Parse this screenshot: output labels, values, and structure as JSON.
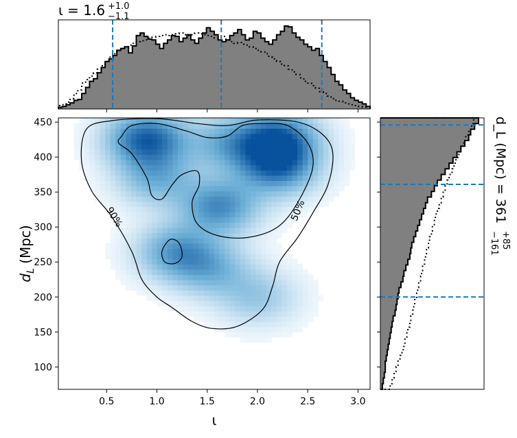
{
  "chart_data": {
    "type": "heatmap",
    "top_title": {
      "base": "ι = 1.6",
      "sup": "+1.0",
      "sub": "−1.1"
    },
    "side_title": {
      "base": "d_L (Mpc) = 361",
      "sup": "+85",
      "sub": "−161"
    },
    "xlabel": "ι",
    "ylabel": {
      "main": "d",
      "sub": "L",
      "rest": " (Mpc)"
    },
    "xlim": [
      0.02,
      3.12
    ],
    "ylim": [
      68,
      456
    ],
    "xticks": [
      "0.5",
      "1.0",
      "1.5",
      "2.0",
      "2.5",
      "3.0"
    ],
    "yticks": [
      "100",
      "150",
      "200",
      "250",
      "300",
      "350",
      "400",
      "450"
    ],
    "x_quantiles": [
      0.56,
      1.64,
      2.64
    ],
    "y_quantiles": [
      200,
      361,
      446
    ],
    "contour_labels": [
      "90%",
      "50%"
    ],
    "density_peaks": [
      {
        "x": 0.9,
        "y": 426,
        "weight": 1.0
      },
      {
        "x": 2.2,
        "y": 425,
        "weight": 1.0
      },
      {
        "x": 2.2,
        "y": 385,
        "weight": 0.8
      },
      {
        "x": 1.62,
        "y": 330,
        "weight": 0.75
      },
      {
        "x": 1.7,
        "y": 420,
        "weight": 0.5
      },
      {
        "x": 1.2,
        "y": 265,
        "weight": 0.65
      },
      {
        "x": 1.55,
        "y": 240,
        "weight": 0.45
      },
      {
        "x": 2.0,
        "y": 200,
        "weight": 0.35
      },
      {
        "x": 1.0,
        "y": 370,
        "weight": 0.5
      }
    ],
    "contour_50": [
      [
        0.65,
        430
      ],
      [
        0.75,
        445
      ],
      [
        1.0,
        448
      ],
      [
        1.3,
        437
      ],
      [
        1.5,
        428
      ],
      [
        1.7,
        430
      ],
      [
        1.85,
        445
      ],
      [
        2.05,
        448
      ],
      [
        2.3,
        445
      ],
      [
        2.5,
        420
      ],
      [
        2.55,
        385
      ],
      [
        2.4,
        335
      ],
      [
        2.2,
        300
      ],
      [
        1.9,
        285
      ],
      [
        1.6,
        288
      ],
      [
        1.4,
        305
      ],
      [
        1.35,
        335
      ],
      [
        1.42,
        360
      ],
      [
        1.4,
        380
      ],
      [
        1.25,
        375
      ],
      [
        1.15,
        360
      ],
      [
        1.05,
        340
      ],
      [
        0.95,
        345
      ],
      [
        0.9,
        370
      ],
      [
        0.75,
        405
      ],
      [
        0.62,
        420
      ]
    ],
    "contour_90_outer": [
      [
        0.25,
        395
      ],
      [
        0.3,
        440
      ],
      [
        0.55,
        452
      ],
      [
        1.0,
        455
      ],
      [
        1.4,
        448
      ],
      [
        1.7,
        445
      ],
      [
        2.0,
        453
      ],
      [
        2.4,
        450
      ],
      [
        2.65,
        432
      ],
      [
        2.75,
        405
      ],
      [
        2.7,
        360
      ],
      [
        2.55,
        320
      ],
      [
        2.4,
        285
      ],
      [
        2.22,
        250
      ],
      [
        2.15,
        215
      ],
      [
        2.05,
        182
      ],
      [
        1.8,
        158
      ],
      [
        1.55,
        155
      ],
      [
        1.35,
        165
      ],
      [
        1.15,
        185
      ],
      [
        1.0,
        200
      ],
      [
        0.85,
        225
      ],
      [
        0.75,
        265
      ],
      [
        0.55,
        315
      ],
      [
        0.35,
        352
      ]
    ],
    "contour_90_inner": [
      [
        1.05,
        265
      ],
      [
        1.13,
        282
      ],
      [
        1.22,
        277
      ],
      [
        1.25,
        258
      ],
      [
        1.18,
        248
      ],
      [
        1.08,
        250
      ]
    ],
    "x_hist": {
      "bin_edges": [
        0.02,
        3.12
      ],
      "solid": [
        0.02,
        0.03,
        0.05,
        0.07,
        0.1,
        0.11,
        0.18,
        0.25,
        0.32,
        0.35,
        0.42,
        0.48,
        0.55,
        0.58,
        0.62,
        0.68,
        0.7,
        0.72,
        0.65,
        0.73,
        0.85,
        0.88,
        0.84,
        0.81,
        0.8,
        0.75,
        0.7,
        0.76,
        0.8,
        0.85,
        0.84,
        0.78,
        0.82,
        0.86,
        0.8,
        0.76,
        0.82,
        0.88,
        0.94,
        0.9,
        0.86,
        0.8,
        0.78,
        0.8,
        0.85,
        0.88,
        0.92,
        0.86,
        0.8,
        0.82,
        0.9,
        0.88,
        0.82,
        0.78,
        0.75,
        0.8,
        0.86,
        0.9,
        0.96,
        0.95,
        0.88,
        0.83,
        0.8,
        0.75,
        0.72,
        0.68,
        0.7,
        0.62,
        0.55,
        0.48,
        0.4,
        0.32,
        0.28,
        0.22,
        0.18,
        0.13,
        0.1,
        0.08,
        0.06,
        0.03
      ],
      "dotted": [
        0.04,
        0.05,
        0.08,
        0.12,
        0.18,
        0.22,
        0.3,
        0.34,
        0.38,
        0.42,
        0.46,
        0.5,
        0.55,
        0.6,
        0.64,
        0.68,
        0.7,
        0.72,
        0.74,
        0.76,
        0.78,
        0.79,
        0.8,
        0.82,
        0.83,
        0.84,
        0.85,
        0.86,
        0.85,
        0.86,
        0.87,
        0.88,
        0.86,
        0.85,
        0.86,
        0.88,
        0.87,
        0.86,
        0.85,
        0.84,
        0.82,
        0.83,
        0.84,
        0.8,
        0.78,
        0.76,
        0.77,
        0.75,
        0.74,
        0.72,
        0.7,
        0.68,
        0.66,
        0.64,
        0.6,
        0.58,
        0.55,
        0.52,
        0.5,
        0.46,
        0.43,
        0.4,
        0.36,
        0.32,
        0.3,
        0.27,
        0.24,
        0.2,
        0.18,
        0.15,
        0.12,
        0.1,
        0.09,
        0.07,
        0.06,
        0.05,
        0.04,
        0.03,
        0.02,
        0.02
      ]
    },
    "y_hist": {
      "bin_edges": [
        68,
        456
      ],
      "solid": [
        0.02,
        0.03,
        0.04,
        0.05,
        0.05,
        0.06,
        0.07,
        0.08,
        0.09,
        0.1,
        0.11,
        0.12,
        0.13,
        0.15,
        0.16,
        0.17,
        0.18,
        0.19,
        0.21,
        0.23,
        0.24,
        0.26,
        0.28,
        0.3,
        0.31,
        0.32,
        0.34,
        0.36,
        0.38,
        0.4,
        0.42,
        0.44,
        0.46,
        0.48,
        0.52,
        0.55,
        0.58,
        0.62,
        0.66,
        0.7,
        0.74,
        0.78,
        0.82,
        0.86,
        0.9,
        0.92,
        0.96,
        1.0
      ],
      "dotted": [
        0.1,
        0.12,
        0.14,
        0.16,
        0.18,
        0.2,
        0.22,
        0.24,
        0.25,
        0.27,
        0.28,
        0.3,
        0.31,
        0.33,
        0.34,
        0.35,
        0.37,
        0.38,
        0.39,
        0.41,
        0.42,
        0.43,
        0.45,
        0.46,
        0.47,
        0.49,
        0.5,
        0.52,
        0.53,
        0.55,
        0.56,
        0.58,
        0.6,
        0.62,
        0.64,
        0.66,
        0.68,
        0.7,
        0.73,
        0.75,
        0.77,
        0.8,
        0.82,
        0.85,
        0.87,
        0.9,
        0.93,
        0.95
      ]
    }
  },
  "colors": {
    "hist_fill": "#808080",
    "quantile_line": "#1f77b4",
    "cmap_low": "#f7fbff",
    "cmap_high": "#08306b"
  }
}
